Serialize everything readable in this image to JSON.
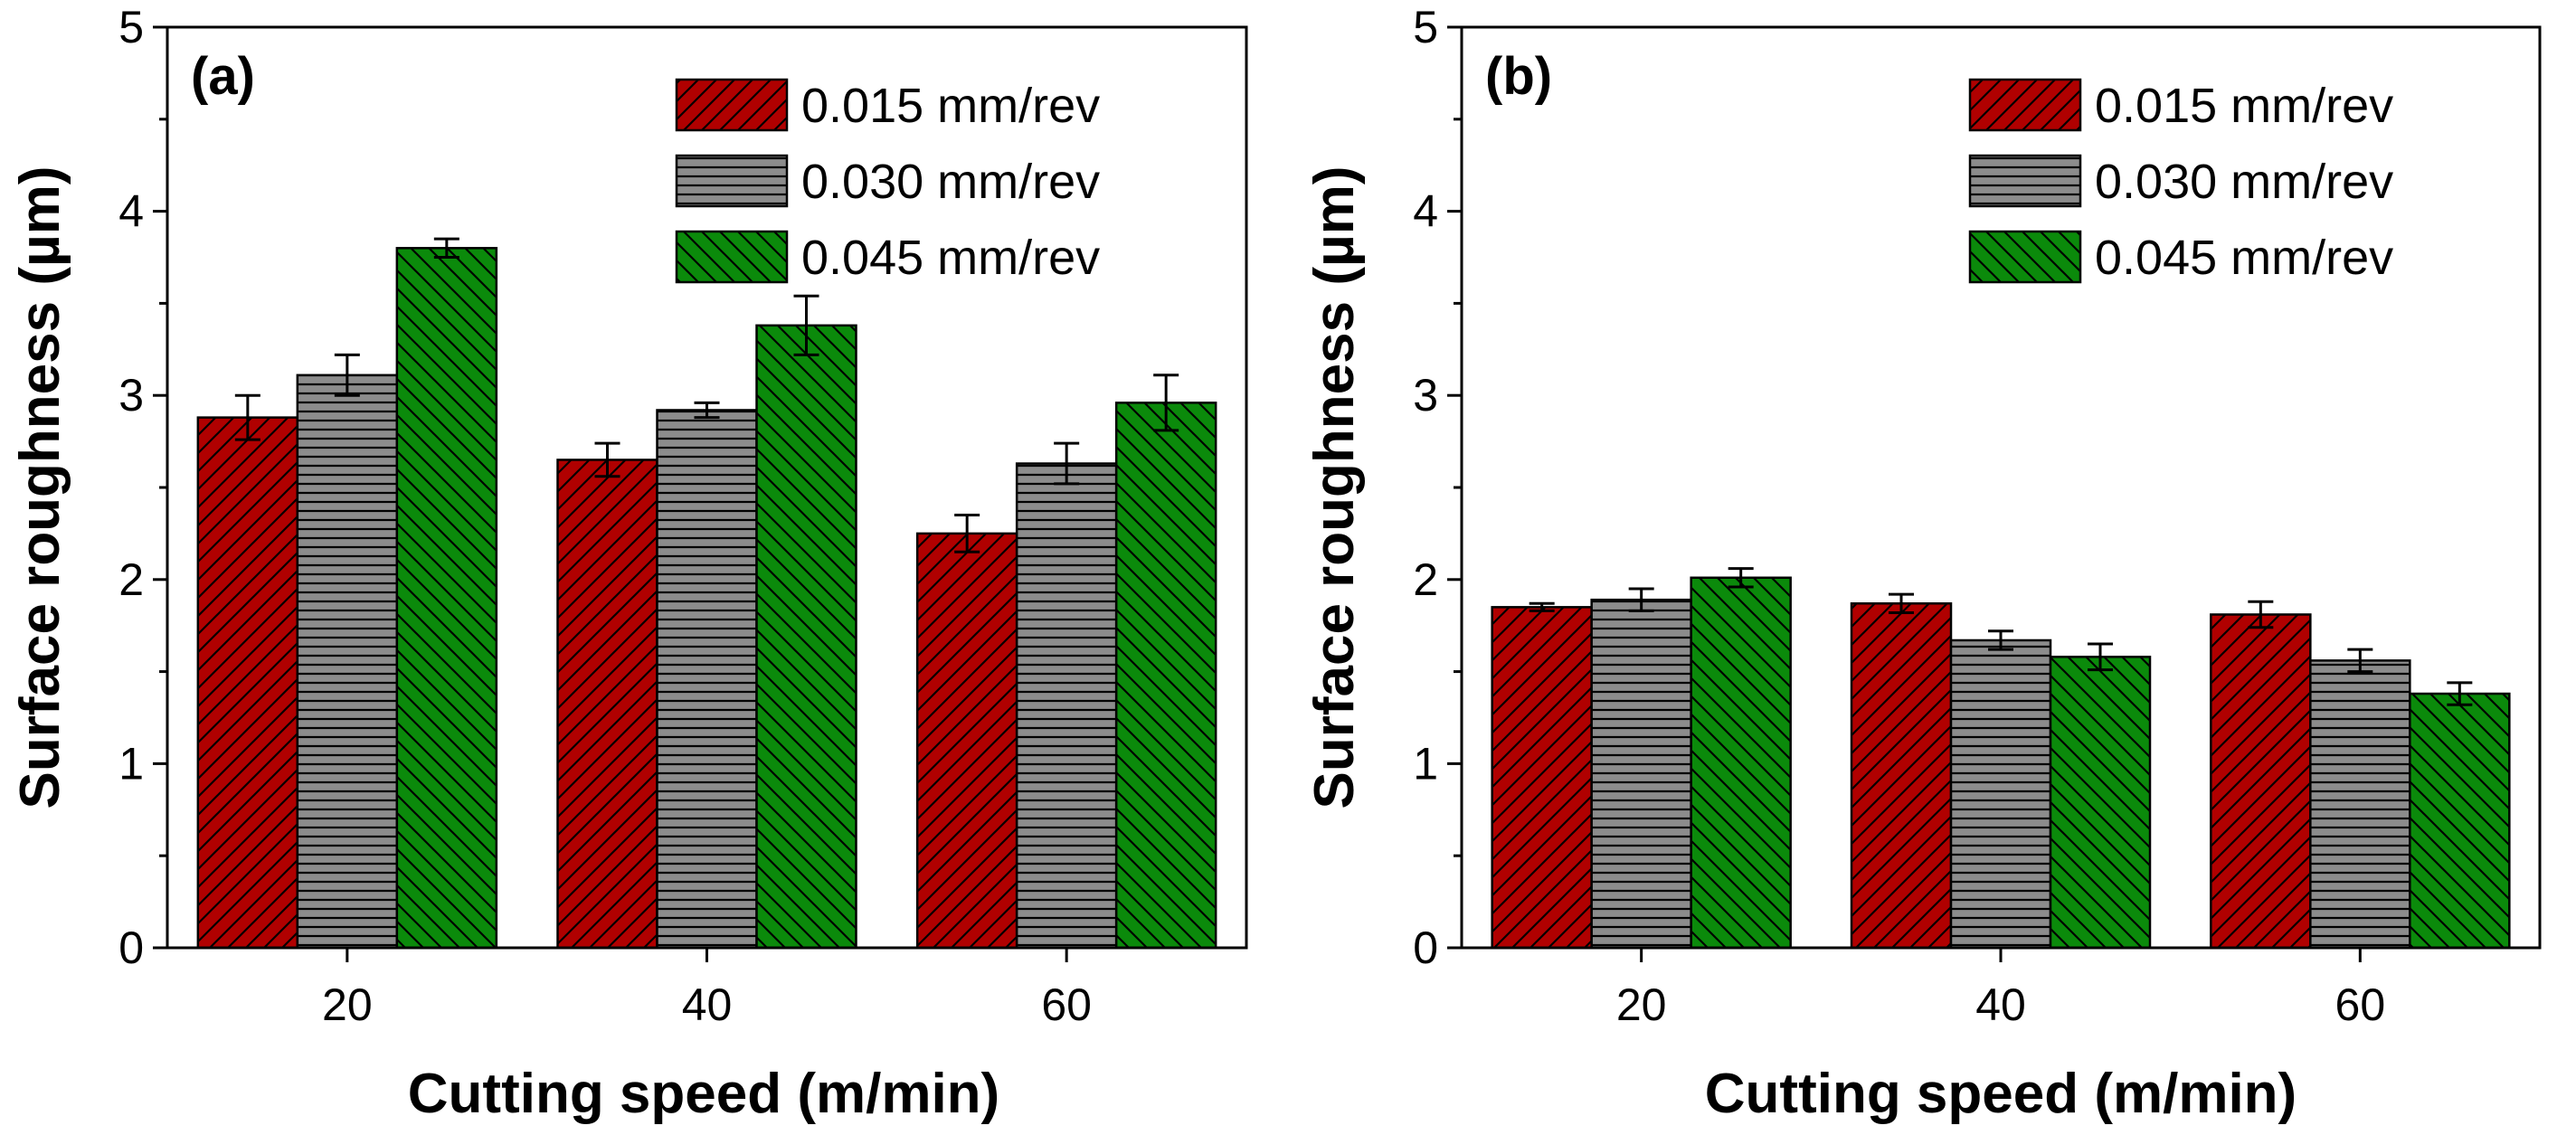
{
  "chart_data": [
    {
      "type": "bar",
      "panel_label": "(a)",
      "xlabel": "Cutting speed (m/min)",
      "ylabel": "Surface roughness (µm)",
      "ylim": [
        0,
        5
      ],
      "yticks": [
        "0",
        "1",
        "2",
        "3",
        "4",
        "5"
      ],
      "categories": [
        "20",
        "40",
        "60"
      ],
      "legend_position": "top-right",
      "series": [
        {
          "name": "0.015 mm/rev",
          "color": "#b00000",
          "pattern": "diagonal-right",
          "values": [
            2.88,
            2.65,
            2.25
          ],
          "errors": [
            0.12,
            0.09,
            0.1
          ]
        },
        {
          "name": "0.030 mm/rev",
          "color": "#8c8c8c",
          "pattern": "horizontal",
          "values": [
            3.11,
            2.92,
            2.63
          ],
          "errors": [
            0.11,
            0.04,
            0.11
          ]
        },
        {
          "name": "0.045 mm/rev",
          "color": "#0b8a0b",
          "pattern": "diagonal-left",
          "values": [
            3.8,
            3.38,
            2.96
          ],
          "errors": [
            0.05,
            0.16,
            0.15
          ]
        }
      ]
    },
    {
      "type": "bar",
      "panel_label": "(b)",
      "xlabel": "Cutting speed (m/min)",
      "ylabel": "Surface roughness (µm)",
      "ylim": [
        0,
        5
      ],
      "yticks": [
        "0",
        "1",
        "2",
        "3",
        "4",
        "5"
      ],
      "categories": [
        "20",
        "40",
        "60"
      ],
      "legend_position": "top-right",
      "series": [
        {
          "name": "0.015 mm/rev",
          "color": "#b00000",
          "pattern": "diagonal-right",
          "values": [
            1.85,
            1.87,
            1.81
          ],
          "errors": [
            0.02,
            0.05,
            0.07
          ]
        },
        {
          "name": "0.030 mm/rev",
          "color": "#8c8c8c",
          "pattern": "horizontal",
          "values": [
            1.89,
            1.67,
            1.56
          ],
          "errors": [
            0.06,
            0.05,
            0.06
          ]
        },
        {
          "name": "0.045 mm/rev",
          "color": "#0b8a0b",
          "pattern": "diagonal-left",
          "values": [
            2.01,
            1.58,
            1.38
          ],
          "errors": [
            0.05,
            0.07,
            0.06
          ]
        }
      ]
    }
  ]
}
